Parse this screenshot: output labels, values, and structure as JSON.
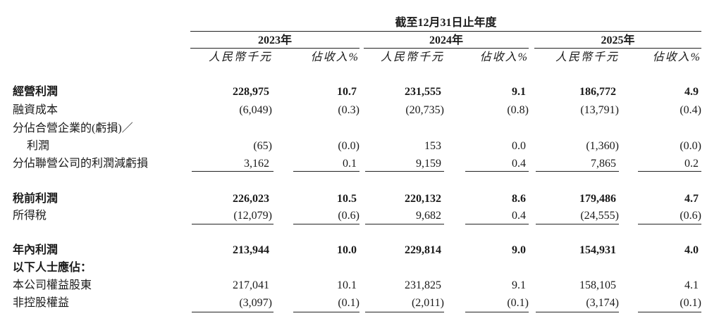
{
  "table": {
    "period_header": "截至12月31日止年度",
    "years": [
      "2023年",
      "2024年",
      "2025年"
    ],
    "subheaders": [
      "人民幣千元",
      "佔收入%",
      "人民幣千元",
      "佔收入%",
      "人民幣千元",
      "佔收入%"
    ],
    "rows": [
      {
        "label": "經營利潤",
        "bold": true,
        "values": [
          "228,975",
          "10.7",
          "231,555",
          "9.1",
          "186,772",
          "4.9"
        ]
      },
      {
        "label": "融資成本",
        "bold": false,
        "values": [
          "(6,049)",
          "(0.3)",
          "(20,735)",
          "(0.8)",
          "(13,791)",
          "(0.4)"
        ]
      },
      {
        "label_lines": [
          "分佔合營企業的(虧損)／",
          "利潤"
        ],
        "bold": false,
        "values": [
          "(65)",
          "(0.0)",
          "153",
          "0.0",
          "(1,360)",
          "(0.0)"
        ]
      },
      {
        "label": "分佔聯營公司的利潤減虧損",
        "bold": false,
        "values": [
          "3,162",
          "0.1",
          "9,159",
          "0.4",
          "7,865",
          "0.2"
        ]
      },
      {
        "label": "稅前利潤",
        "bold": true,
        "values": [
          "226,023",
          "10.5",
          "220,132",
          "8.6",
          "179,486",
          "4.7"
        ]
      },
      {
        "label": "所得稅",
        "bold": false,
        "values": [
          "(12,079)",
          "(0.6)",
          "9,682",
          "0.4",
          "(24,555)",
          "(0.6)"
        ]
      },
      {
        "label": "年內利潤",
        "bold": true,
        "values": [
          "213,944",
          "10.0",
          "229,814",
          "9.0",
          "154,931",
          "4.0"
        ]
      },
      {
        "label": "以下人士應佔：",
        "bold": true,
        "values": []
      },
      {
        "label": "本公司權益股東",
        "bold": false,
        "values": [
          "217,041",
          "10.1",
          "231,825",
          "9.1",
          "158,105",
          "4.1"
        ]
      },
      {
        "label": "非控股權益",
        "bold": false,
        "values": [
          "(3,097)",
          "(0.1)",
          "(2,011)",
          "(0.1)",
          "(3,174)",
          "(0.1)"
        ]
      }
    ]
  }
}
